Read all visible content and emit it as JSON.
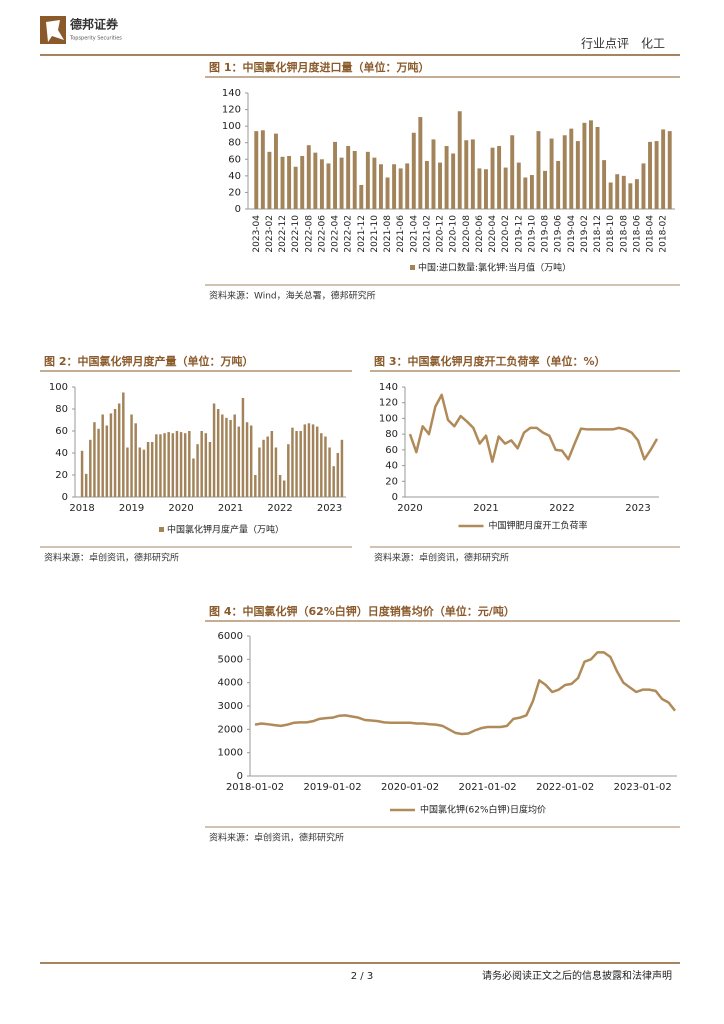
{
  "header": {
    "logo_name": "德邦证券",
    "logo_sub": "Topsperity Securities",
    "section": "行业点评　化工"
  },
  "chart_data": [
    {
      "type": "bar",
      "title": "图 1：中国氯化钾月度进口量（单位：万吨）",
      "categories": [
        "2023-04",
        null,
        "2023-02",
        null,
        "2022-12",
        null,
        "2022-10",
        null,
        "2022-08",
        null,
        "2022-06",
        null,
        "2022-04",
        null,
        "2022-02",
        null,
        "2021-12",
        null,
        "2021-10",
        null,
        "2021-08",
        null,
        "2021-06",
        null,
        "2021-04",
        null,
        "2021-02",
        null,
        "2020-12",
        null,
        "2020-10",
        null,
        "2020-08",
        null,
        "2020-06",
        null,
        "2020-04",
        null,
        "2020-02",
        null,
        "2019-12",
        null,
        "2019-10",
        null,
        "2019-08",
        null,
        "2019-06",
        null,
        "2019-04",
        null,
        "2019-02",
        null,
        "2018-12",
        null,
        "2018-10",
        null,
        "2018-08",
        null,
        "2018-06",
        null,
        "2018-04",
        null,
        "2018-02",
        null
      ],
      "series": [
        {
          "name": "中国:进口数量:氯化钾:当月值（万吨）",
          "color": "#a3845a",
          "values": [
            94,
            95,
            69,
            91,
            63,
            64,
            51,
            64,
            77,
            68,
            60,
            55,
            81,
            62,
            76,
            70,
            29,
            69,
            62,
            54,
            38,
            54,
            49,
            55,
            92,
            111,
            58,
            84,
            56,
            76,
            67,
            118,
            83,
            84,
            49,
            48,
            74,
            76,
            50,
            89,
            56,
            38,
            41,
            94,
            46,
            85,
            58,
            89,
            97,
            82,
            104,
            107,
            99,
            59,
            32,
            42,
            40,
            31,
            36,
            55,
            81,
            82,
            96,
            94
          ]
        }
      ],
      "ylim": [
        0,
        140
      ],
      "yticks": [
        0,
        20,
        40,
        60,
        80,
        100,
        120,
        140
      ],
      "source": "资料来源：Wind，海关总署，德邦研究所"
    },
    {
      "type": "bar",
      "title": "图 2：中国氯化钾月度产量（单位：万吨）",
      "categories": [
        "2018",
        null,
        null,
        null,
        null,
        null,
        null,
        null,
        null,
        null,
        null,
        null,
        "2019",
        null,
        null,
        null,
        null,
        null,
        null,
        null,
        null,
        null,
        null,
        null,
        "2020",
        null,
        null,
        null,
        null,
        null,
        null,
        null,
        null,
        null,
        null,
        null,
        "2021",
        null,
        null,
        null,
        null,
        null,
        null,
        null,
        null,
        null,
        null,
        null,
        "2022",
        null,
        null,
        null,
        null,
        null,
        null,
        null,
        null,
        null,
        null,
        null,
        "2023",
        null,
        null,
        null
      ],
      "series": [
        {
          "name": "中国氯化钾月度产量（万吨）",
          "color": "#a3845a",
          "values": [
            42,
            21,
            52,
            68,
            62,
            75,
            65,
            76,
            80,
            85,
            95,
            45,
            75,
            67,
            45,
            43,
            50,
            50,
            57,
            57,
            58,
            59,
            58,
            60,
            59,
            58,
            60,
            35,
            48,
            60,
            58,
            50,
            85,
            80,
            75,
            72,
            70,
            75,
            64,
            90,
            68,
            65,
            20,
            45,
            52,
            55,
            60,
            45,
            20,
            15,
            48,
            63,
            60,
            60,
            66,
            67,
            66,
            64,
            58,
            55,
            45,
            28,
            40,
            52
          ]
        }
      ],
      "ylim": [
        0,
        100
      ],
      "yticks": [
        0,
        20,
        40,
        60,
        80,
        100
      ],
      "source": "资料来源：卓创资讯，德邦研究所"
    },
    {
      "type": "line",
      "title": "图 3：中国氯化钾月度开工负荷率（单位：%）",
      "categories": [
        "2020",
        null,
        null,
        null,
        null,
        null,
        null,
        null,
        null,
        null,
        null,
        null,
        "2021",
        null,
        null,
        null,
        null,
        null,
        null,
        null,
        null,
        null,
        null,
        null,
        "2022",
        null,
        null,
        null,
        null,
        null,
        null,
        null,
        null,
        null,
        null,
        null,
        "2023",
        null,
        null,
        null
      ],
      "series": [
        {
          "name": "中国钾肥月度开工负荷率",
          "color": "#b08a58",
          "values": [
            80,
            57,
            90,
            80,
            115,
            130,
            98,
            90,
            103,
            96,
            88,
            68,
            78,
            45,
            77,
            68,
            72,
            62,
            82,
            88,
            88,
            82,
            78,
            60,
            59,
            48,
            68,
            87,
            86,
            86,
            86,
            86,
            86,
            88,
            86,
            82,
            72,
            48,
            60,
            74
          ]
        }
      ],
      "ylim": [
        0,
        140
      ],
      "yticks": [
        0,
        20,
        40,
        60,
        80,
        100,
        120,
        140
      ],
      "source": "资料来源：卓创资讯，德邦研究所"
    },
    {
      "type": "line",
      "title": "图 4：中国氯化钾（62%白钾）日度销售均价（单位：元/吨）",
      "categories": [
        "2018-01-02",
        null,
        null,
        null,
        null,
        null,
        null,
        null,
        null,
        null,
        null,
        null,
        "2019-01-02",
        null,
        null,
        null,
        null,
        null,
        null,
        null,
        null,
        null,
        null,
        null,
        "2020-01-02",
        null,
        null,
        null,
        null,
        null,
        null,
        null,
        null,
        null,
        null,
        null,
        "2021-01-02",
        null,
        null,
        null,
        null,
        null,
        null,
        null,
        null,
        null,
        null,
        null,
        "2022-01-02",
        null,
        null,
        null,
        null,
        null,
        null,
        null,
        null,
        null,
        null,
        null,
        "2023-01-02",
        null,
        null,
        null,
        null,
        null
      ],
      "series": [
        {
          "name": "中国氯化钾(62%白钾)日度均价",
          "color": "#b08a58",
          "values": [
            2200,
            2250,
            2220,
            2180,
            2150,
            2200,
            2280,
            2300,
            2300,
            2350,
            2450,
            2480,
            2500,
            2580,
            2600,
            2550,
            2500,
            2400,
            2380,
            2350,
            2300,
            2280,
            2280,
            2280,
            2280,
            2250,
            2250,
            2220,
            2200,
            2150,
            2000,
            1850,
            1800,
            1820,
            1950,
            2050,
            2100,
            2100,
            2100,
            2150,
            2450,
            2500,
            2600,
            3200,
            4100,
            3900,
            3600,
            3700,
            3900,
            3950,
            4200,
            4900,
            5000,
            5300,
            5300,
            5100,
            4500,
            4000,
            3800,
            3600,
            3700,
            3700,
            3650,
            3300,
            3150,
            2800
          ]
        }
      ],
      "ylim": [
        0,
        6000
      ],
      "yticks": [
        0,
        1000,
        2000,
        3000,
        4000,
        5000,
        6000
      ],
      "source": "资料来源：卓创资讯，德邦研究所"
    }
  ],
  "footer": {
    "page": "2 / 3",
    "disclaimer": "请务必阅读正文之后的信息披露和法律声明"
  }
}
